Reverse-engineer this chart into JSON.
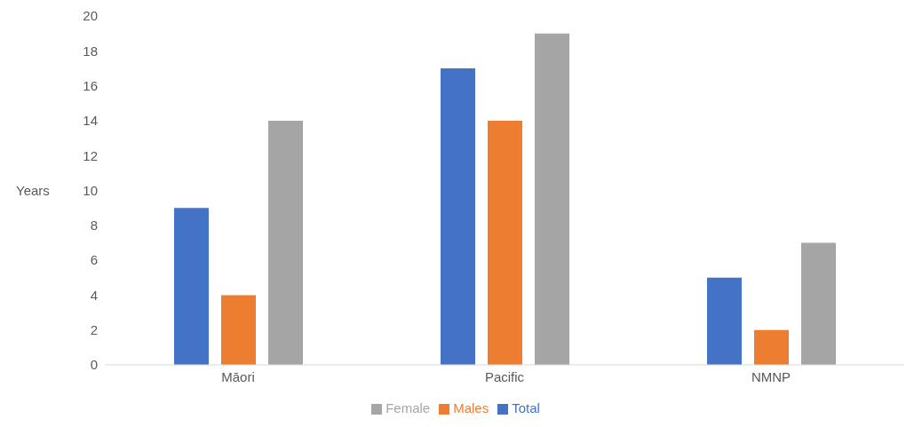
{
  "chart_data": {
    "type": "bar",
    "ylabel": "Years",
    "categories": [
      "Māori",
      "Pacific",
      "NMNP"
    ],
    "series": [
      {
        "name": "Total",
        "color": "#4472c4",
        "values": [
          9,
          17,
          5
        ]
      },
      {
        "name": "Males",
        "color": "#ed7d31",
        "values": [
          4,
          14,
          2
        ]
      },
      {
        "name": "Female",
        "color": "#a5a5a5",
        "values": [
          14,
          19,
          7
        ]
      }
    ],
    "ylim": [
      0,
      20
    ],
    "yticks": [
      0,
      2,
      4,
      6,
      8,
      10,
      12,
      14,
      16,
      18,
      20
    ],
    "grid": false,
    "legend": "bottom"
  }
}
